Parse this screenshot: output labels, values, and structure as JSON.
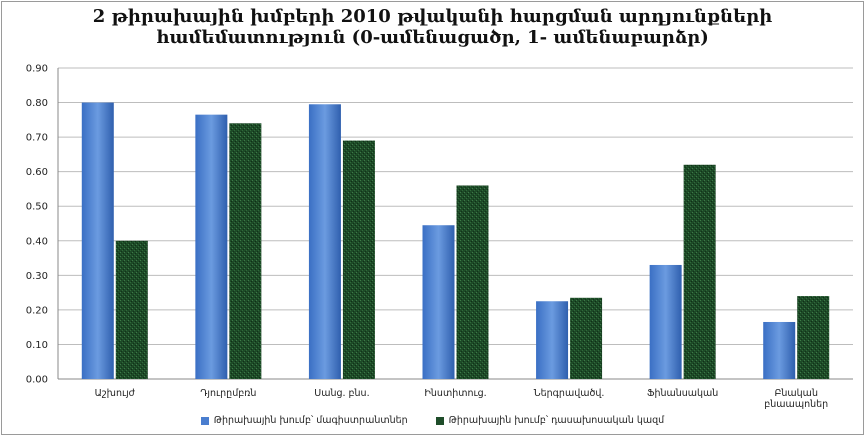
{
  "chart_data": {
    "type": "bar",
    "title_lines": [
      "2 թիրախային խմբերի 2010 թվականի  հարցման արդյունքների",
      "համեմատություն (0-ամենացածր, 1- ամենաբարձր)"
    ],
    "categories": [
      [
        "Աշխույժ"
      ],
      [
        "Դյուրըմբռն"
      ],
      [
        "Սանց. բնս."
      ],
      [
        "Ինստիտուց."
      ],
      [
        "Ներգրավածվ."
      ],
      [
        "Ֆինանսական"
      ],
      [
        "Բնական",
        "բնաապոներ"
      ]
    ],
    "series": [
      {
        "name": "Թիրախային խումբ՝ մագիստրանտներ",
        "values": [
          0.8,
          0.765,
          0.795,
          0.445,
          0.225,
          0.33,
          0.165
        ],
        "color": "#4a7ecf"
      },
      {
        "name": "Թիրախային խումբ՝ դասախոսական կազմ",
        "values": [
          0.4,
          0.74,
          0.69,
          0.56,
          0.235,
          0.62,
          0.24
        ],
        "color": "#1f4d2a"
      }
    ],
    "yticks": [
      "0.00",
      "0.10",
      "0.20",
      "0.30",
      "0.40",
      "0.50",
      "0.60",
      "0.70",
      "0.80",
      "0.90"
    ],
    "ylim": [
      0,
      0.9
    ],
    "grid": true,
    "legend_position": "bottom"
  }
}
